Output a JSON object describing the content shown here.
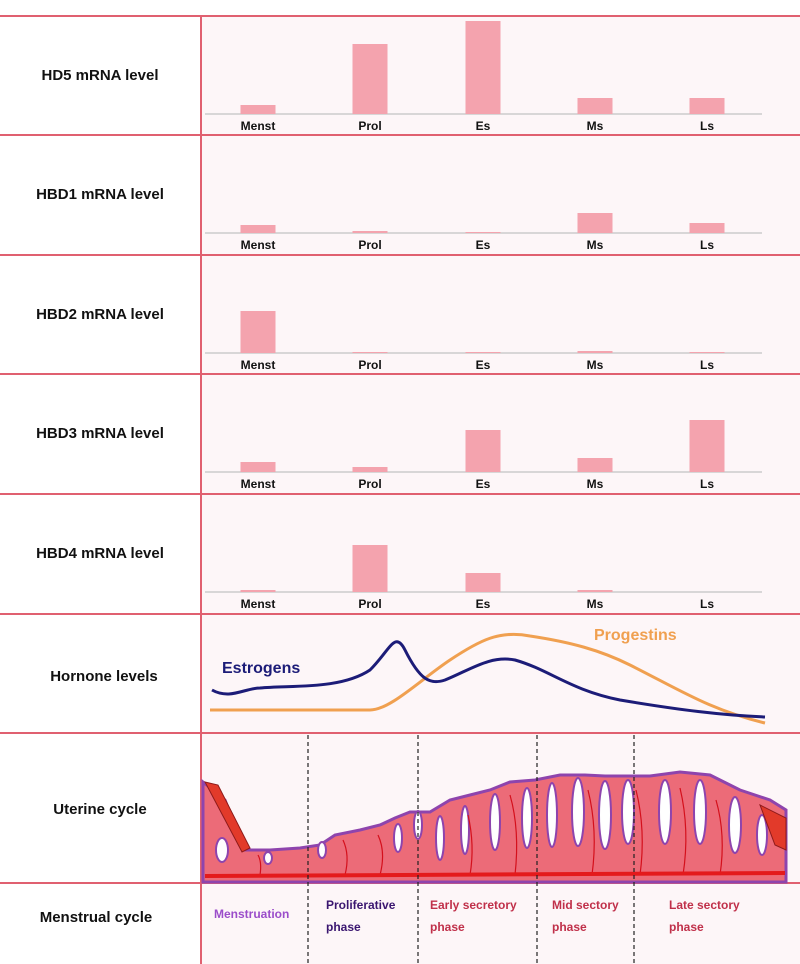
{
  "chart_data": [
    {
      "type": "bar",
      "title": "HD5 mRNA level",
      "categories": [
        "Menst",
        "Prol",
        "Es",
        "Ms",
        "Ls"
      ],
      "values": [
        9,
        70,
        93,
        16,
        16
      ],
      "color": "#f4a3ae"
    },
    {
      "type": "bar",
      "title": "HBD1 mRNA level",
      "categories": [
        "Menst",
        "Prol",
        "Es",
        "Ms",
        "Ls"
      ],
      "values": [
        8,
        2,
        1,
        20,
        10
      ],
      "color": "#f4a3ae"
    },
    {
      "type": "bar",
      "title": "HBD2 mRNA level",
      "categories": [
        "Menst",
        "Prol",
        "Es",
        "Ms",
        "Ls"
      ],
      "values": [
        42,
        1,
        1,
        2,
        1
      ],
      "color": "#f4a3ae"
    },
    {
      "type": "bar",
      "title": "HBD3 mRNA level",
      "categories": [
        "Menst",
        "Prol",
        "Es",
        "Ms",
        "Ls"
      ],
      "values": [
        10,
        5,
        42,
        14,
        52
      ],
      "color": "#f4a3ae"
    },
    {
      "type": "bar",
      "title": "HBD4 mRNA level",
      "categories": [
        "Menst",
        "Prol",
        "Es",
        "Ms",
        "Ls"
      ],
      "values": [
        2,
        47,
        19,
        2,
        0
      ],
      "color": "#f4a3ae"
    }
  ],
  "hormones": {
    "title": "Hornone levels",
    "estrogens": "Estrogens",
    "progestins": "Progestins"
  },
  "uterine": {
    "title": "Uterine cycle"
  },
  "menstrual": {
    "title": "Menstrual cycle",
    "phases": [
      [
        "Menstruation"
      ],
      [
        "Proliferative",
        "phase"
      ],
      [
        "Early secretory",
        "phase"
      ],
      [
        "Mid sectory",
        "phase"
      ],
      [
        "Late sectory",
        "phase"
      ]
    ]
  }
}
